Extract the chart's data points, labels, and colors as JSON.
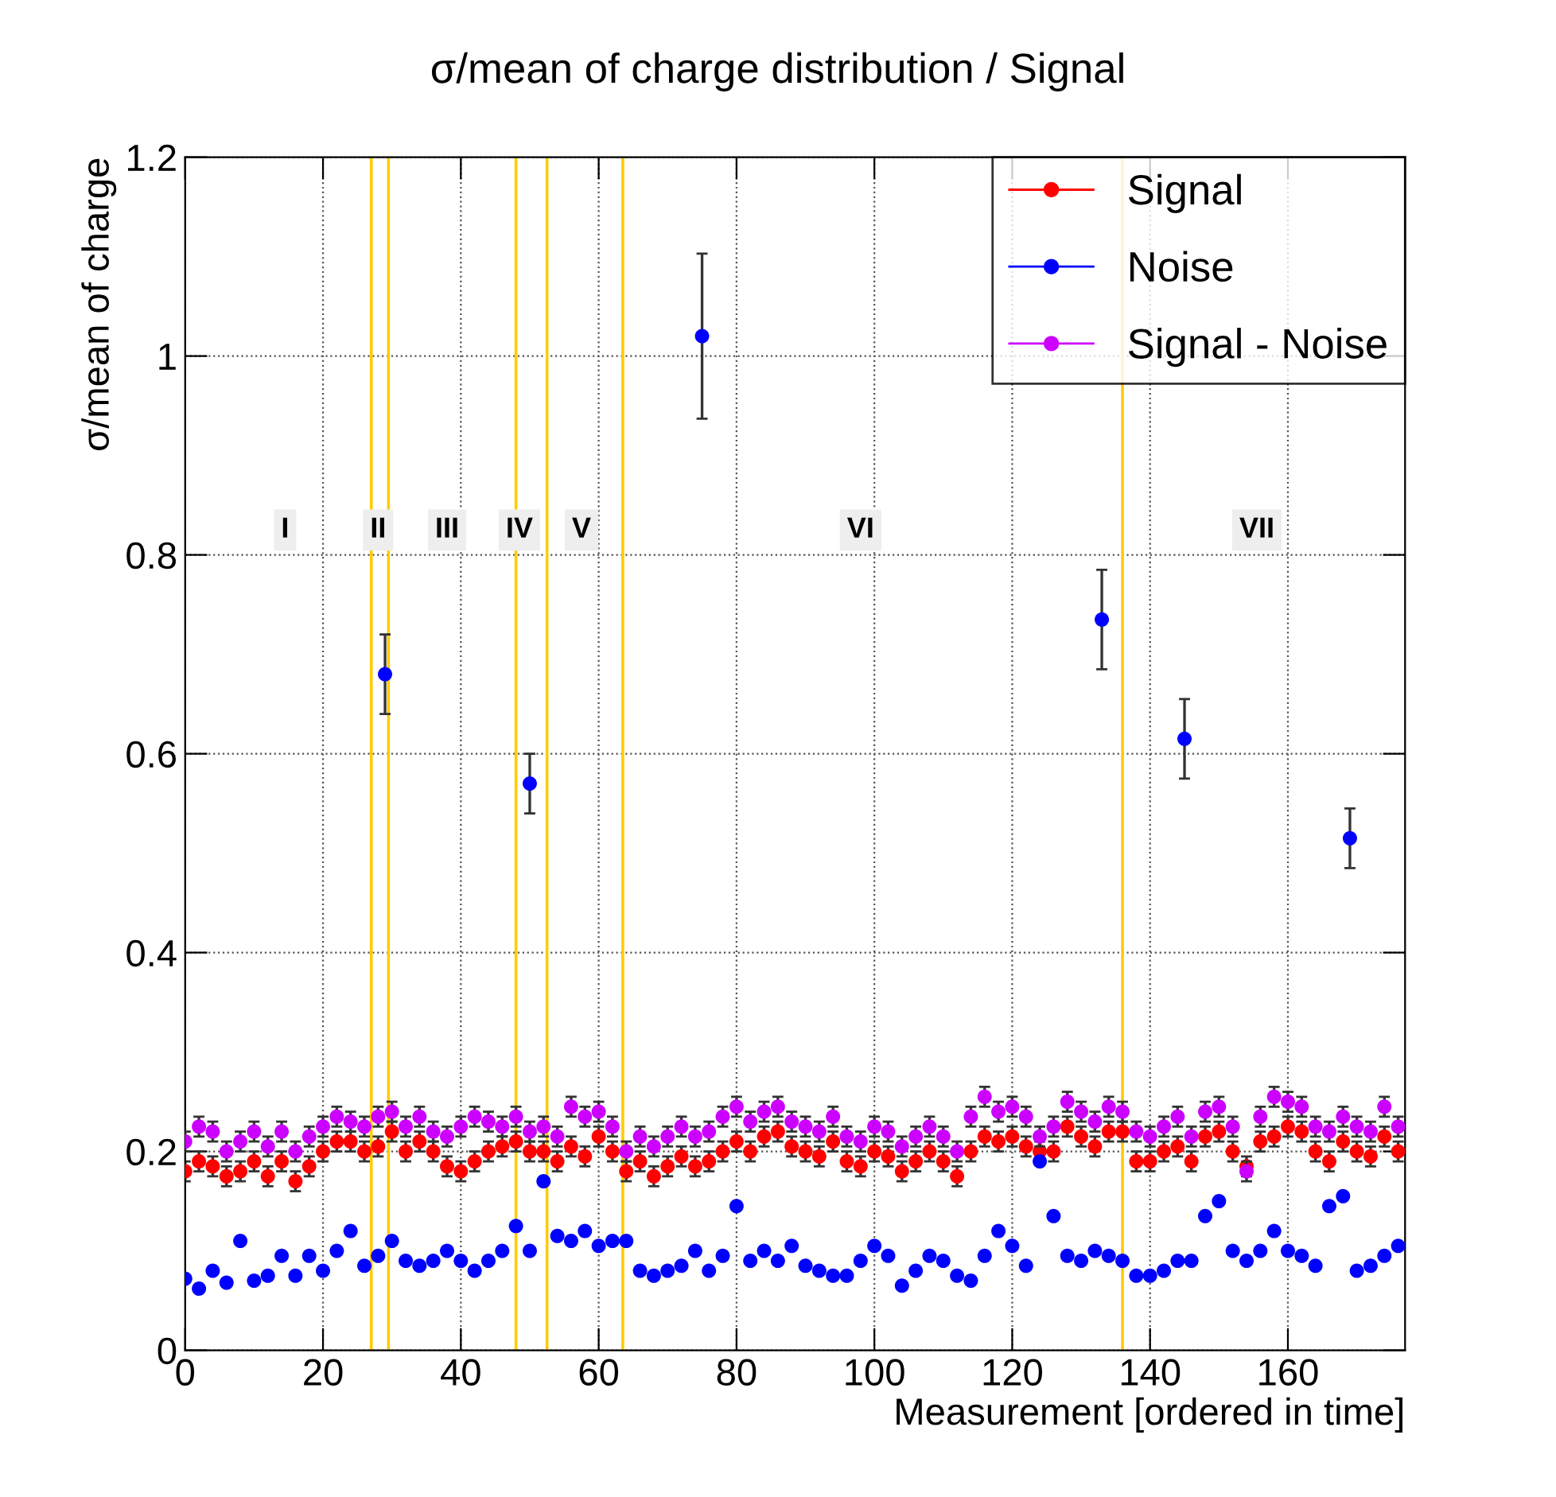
{
  "chart_data": {
    "type": "scatter",
    "title": "σ/mean of charge distribution / Signal",
    "xlabel": "Measurement [ordered in time]",
    "ylabel": "σ/mean of charge",
    "x": [
      0,
      2,
      4,
      6,
      8,
      10,
      12,
      14,
      16,
      18,
      20,
      22,
      24,
      26,
      28,
      30,
      32,
      34,
      36,
      38,
      40,
      42,
      44,
      46,
      48,
      50,
      52,
      54,
      56,
      58,
      60,
      62,
      64,
      66,
      68,
      70,
      72,
      74,
      76,
      78,
      80,
      82,
      84,
      86,
      88,
      90,
      92,
      94,
      96,
      98,
      100,
      102,
      104,
      106,
      108,
      110,
      112,
      114,
      116,
      118,
      120,
      122,
      124,
      126,
      128,
      130,
      132,
      134,
      136,
      138,
      140,
      142,
      144,
      146,
      148,
      150,
      152,
      154,
      156,
      158,
      160,
      162,
      164,
      166,
      168,
      170,
      172,
      174,
      176
    ],
    "series": [
      {
        "name": "Signal",
        "color": "#ff0000",
        "values": [
          0.18,
          0.19,
          0.185,
          0.175,
          0.18,
          0.19,
          0.175,
          0.19,
          0.17,
          0.185,
          0.2,
          0.21,
          0.21,
          0.2,
          0.205,
          0.22,
          0.2,
          0.21,
          0.2,
          0.185,
          0.18,
          0.19,
          0.2,
          0.205,
          0.21,
          0.2,
          0.2,
          0.19,
          0.205,
          0.195,
          0.215,
          0.2,
          0.18,
          0.19,
          0.175,
          0.185,
          0.195,
          0.185,
          0.19,
          0.2,
          0.21,
          0.2,
          0.215,
          0.22,
          0.205,
          0.2,
          0.195,
          0.21,
          0.19,
          0.185,
          0.2,
          0.195,
          0.18,
          0.19,
          0.2,
          0.19,
          0.175,
          0.2,
          0.215,
          0.21,
          0.215,
          0.205,
          0.2,
          0.2,
          0.225,
          0.215,
          0.205,
          0.22,
          0.22,
          0.19,
          0.19,
          0.2,
          0.205,
          0.19,
          0.215,
          0.22,
          0.2,
          0.185,
          0.21,
          0.215,
          0.225,
          0.22,
          0.2,
          0.19,
          0.21,
          0.2,
          0.195,
          0.215,
          0.2
        ],
        "errors": [
          0.01,
          0.01,
          0.01,
          0.01,
          0.01,
          0.01,
          0.01,
          0.01,
          0.01,
          0.01,
          0.01,
          0.01,
          0.01,
          0.01,
          0.01,
          0.01,
          0.01,
          0.01,
          0.01,
          0.01,
          0.01,
          0.01,
          0.01,
          0.01,
          0.01,
          0.01,
          0.01,
          0.01,
          0.01,
          0.01,
          0.01,
          0.01,
          0.01,
          0.01,
          0.01,
          0.01,
          0.01,
          0.01,
          0.01,
          0.01,
          0.01,
          0.01,
          0.01,
          0.01,
          0.01,
          0.01,
          0.01,
          0.01,
          0.01,
          0.01,
          0.01,
          0.01,
          0.01,
          0.01,
          0.01,
          0.01,
          0.01,
          0.01,
          0.01,
          0.01,
          0.01,
          0.01,
          0.01,
          0.01,
          0.01,
          0.01,
          0.01,
          0.01,
          0.01,
          0.01,
          0.01,
          0.01,
          0.01,
          0.01,
          0.01,
          0.01,
          0.01,
          0.01,
          0.01,
          0.01,
          0.01,
          0.01,
          0.01,
          0.01,
          0.01,
          0.01,
          0.01,
          0.01,
          0.01
        ]
      },
      {
        "name": "Noise",
        "color": "#0000ff",
        "x": [
          0,
          2,
          4,
          6,
          8,
          10,
          12,
          14,
          16,
          18,
          20,
          22,
          24,
          26,
          28,
          30,
          32,
          34,
          36,
          38,
          40,
          42,
          44,
          46,
          48,
          50,
          52,
          54,
          56,
          58,
          60,
          62,
          64,
          66,
          68,
          70,
          72,
          74,
          76,
          78,
          80,
          82,
          84,
          86,
          88,
          90,
          92,
          94,
          96,
          98,
          100,
          102,
          104,
          106,
          108,
          110,
          112,
          114,
          116,
          118,
          120,
          122,
          124,
          126,
          128,
          130,
          132,
          134,
          136,
          138,
          140,
          142,
          144,
          146,
          148,
          150,
          152,
          154,
          156,
          158,
          160,
          162,
          164,
          166,
          168,
          170,
          172,
          174,
          176,
          29,
          50,
          75,
          133,
          145,
          169
        ],
        "values": [
          0.072,
          0.062,
          0.08,
          0.068,
          0.11,
          0.07,
          0.075,
          0.095,
          0.075,
          0.095,
          0.08,
          0.1,
          0.12,
          0.085,
          0.095,
          0.11,
          0.09,
          0.085,
          0.09,
          0.1,
          0.09,
          0.08,
          0.09,
          0.1,
          0.125,
          0.1,
          0.17,
          0.115,
          0.11,
          0.12,
          0.105,
          0.11,
          0.11,
          0.08,
          0.075,
          0.08,
          0.085,
          0.1,
          0.08,
          0.095,
          0.145,
          0.09,
          0.1,
          0.09,
          0.105,
          0.085,
          0.08,
          0.075,
          0.075,
          0.09,
          0.105,
          0.095,
          0.065,
          0.08,
          0.095,
          0.09,
          0.075,
          0.07,
          0.095,
          0.12,
          0.105,
          0.085,
          0.19,
          0.135,
          0.095,
          0.09,
          0.1,
          0.095,
          0.09,
          0.075,
          0.075,
          0.08,
          0.09,
          0.09,
          0.135,
          0.15,
          0.1,
          0.09,
          0.1,
          0.12,
          0.1,
          0.095,
          0.085,
          0.145,
          0.155,
          0.08,
          0.085,
          0.095,
          0.105,
          0.68,
          0.57,
          1.02,
          0.735,
          0.615,
          0.515
        ],
        "errors": [
          null,
          null,
          null,
          null,
          null,
          null,
          null,
          null,
          null,
          null,
          null,
          null,
          null,
          null,
          null,
          null,
          null,
          null,
          null,
          null,
          null,
          null,
          null,
          null,
          null,
          null,
          null,
          null,
          null,
          null,
          null,
          null,
          null,
          null,
          null,
          null,
          null,
          null,
          null,
          null,
          null,
          null,
          null,
          null,
          null,
          null,
          null,
          null,
          null,
          null,
          null,
          null,
          null,
          null,
          null,
          null,
          null,
          null,
          null,
          null,
          null,
          null,
          null,
          null,
          null,
          null,
          null,
          null,
          null,
          null,
          null,
          null,
          null,
          null,
          null,
          null,
          null,
          null,
          null,
          null,
          null,
          null,
          null,
          null,
          null,
          null,
          null,
          null,
          null,
          0.04,
          0.03,
          0.083,
          0.05,
          0.04,
          0.03
        ]
      },
      {
        "name": "Signal - Noise",
        "color": "#cc00ff",
        "values": [
          0.21,
          0.225,
          0.22,
          0.2,
          0.21,
          0.22,
          0.205,
          0.22,
          0.2,
          0.215,
          0.225,
          0.235,
          0.23,
          0.225,
          0.235,
          0.24,
          0.225,
          0.235,
          0.22,
          0.215,
          0.225,
          0.235,
          0.23,
          0.225,
          0.235,
          0.22,
          0.225,
          0.215,
          0.245,
          0.235,
          0.24,
          0.225,
          0.2,
          0.215,
          0.205,
          0.215,
          0.225,
          0.215,
          0.22,
          0.235,
          0.245,
          0.23,
          0.24,
          0.245,
          0.23,
          0.225,
          0.22,
          0.235,
          0.215,
          0.21,
          0.225,
          0.22,
          0.205,
          0.215,
          0.225,
          0.215,
          0.2,
          0.235,
          0.255,
          0.24,
          0.245,
          0.235,
          0.215,
          0.225,
          0.25,
          0.24,
          0.23,
          0.245,
          0.24,
          0.22,
          0.215,
          0.225,
          0.235,
          0.215,
          0.24,
          0.245,
          0.225,
          0.18,
          0.235,
          0.255,
          0.25,
          0.245,
          0.225,
          0.22,
          0.235,
          0.225,
          0.22,
          0.245,
          0.225
        ],
        "errors": [
          0.01,
          0.01,
          0.01,
          0.01,
          0.01,
          0.01,
          0.01,
          0.01,
          0.01,
          0.01,
          0.01,
          0.01,
          0.01,
          0.01,
          0.01,
          0.01,
          0.01,
          0.01,
          0.01,
          0.01,
          0.01,
          0.01,
          0.01,
          0.01,
          0.01,
          0.01,
          0.01,
          0.01,
          0.01,
          0.01,
          0.01,
          0.01,
          0.01,
          0.01,
          0.01,
          0.01,
          0.01,
          0.01,
          0.01,
          0.01,
          0.01,
          0.01,
          0.01,
          0.01,
          0.01,
          0.01,
          0.01,
          0.01,
          0.01,
          0.01,
          0.01,
          0.01,
          0.01,
          0.01,
          0.01,
          0.01,
          0.01,
          0.01,
          0.01,
          0.01,
          0.01,
          0.01,
          0.01,
          0.01,
          0.01,
          0.01,
          0.01,
          0.01,
          0.01,
          0.01,
          0.01,
          0.01,
          0.01,
          0.01,
          0.01,
          0.01,
          0.01,
          0.01,
          0.01,
          0.01,
          0.01,
          0.01,
          0.01,
          0.01,
          0.01,
          0.01,
          0.01,
          0.01,
          0.01
        ]
      }
    ],
    "xlim": [
      0,
      177
    ],
    "ylim": [
      0,
      1.2
    ],
    "xticks": [
      0,
      20,
      40,
      60,
      80,
      100,
      120,
      140,
      160
    ],
    "yticks": [
      0,
      0.2,
      0.4,
      0.6,
      0.8,
      1,
      1.2
    ],
    "ref_lines": [
      {
        "axis": "x",
        "value": 27,
        "color": "#ffcc00"
      },
      {
        "axis": "x",
        "value": 29.5,
        "color": "#ffcc00"
      },
      {
        "axis": "x",
        "value": 48,
        "color": "#ffcc00"
      },
      {
        "axis": "x",
        "value": 52.5,
        "color": "#ffcc00"
      },
      {
        "axis": "x",
        "value": 63.5,
        "color": "#ffcc00"
      },
      {
        "axis": "x",
        "value": 136,
        "color": "#ffcc00"
      }
    ],
    "annotations": [
      {
        "text": "I",
        "x": 14.5,
        "y": 0.825
      },
      {
        "text": "II",
        "x": 28,
        "y": 0.825
      },
      {
        "text": "III",
        "x": 38,
        "y": 0.825
      },
      {
        "text": "IV",
        "x": 48.5,
        "y": 0.825
      },
      {
        "text": "V",
        "x": 57.5,
        "y": 0.825
      },
      {
        "text": "VI",
        "x": 98,
        "y": 0.825
      },
      {
        "text": "VII",
        "x": 155.5,
        "y": 0.825
      }
    ],
    "grid": true,
    "legend": "top right",
    "marker": "circle"
  }
}
